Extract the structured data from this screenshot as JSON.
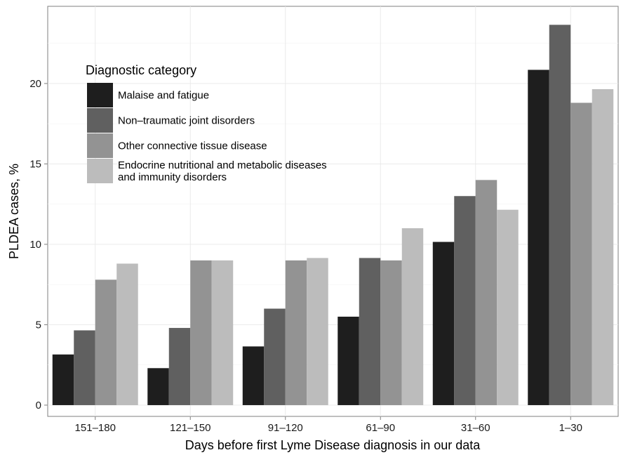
{
  "chart_data": {
    "type": "bar",
    "categories": [
      "151–180",
      "121–150",
      "91–120",
      "61–90",
      "31–60",
      "1–30"
    ],
    "series": [
      {
        "name": "Malaise and fatigue",
        "color": "#1e1e1e",
        "values": [
          3.15,
          2.3,
          3.65,
          5.5,
          10.15,
          20.85
        ]
      },
      {
        "name": "Non–traumatic joint disorders",
        "color": "#606060",
        "values": [
          4.65,
          4.8,
          6.0,
          9.15,
          13.0,
          23.65
        ]
      },
      {
        "name": "Other connective tissue disease",
        "color": "#939393",
        "values": [
          7.8,
          9.0,
          9.0,
          9.0,
          14.0,
          18.8
        ]
      },
      {
        "name": "Endocrine nutritional and metabolic diseases and immunity disorders",
        "name_lines": [
          "Endocrine nutritional and metabolic diseases",
          "and immunity disorders"
        ],
        "color": "#bcbcbc",
        "values": [
          8.8,
          9.0,
          9.15,
          11.0,
          12.15,
          19.65
        ]
      }
    ],
    "xlabel": "Days before first Lyme Disease diagnosis in our data",
    "ylabel": "PLDEA cases, %",
    "ylim": [
      -0.7,
      24.8
    ],
    "yticks": [
      0,
      5,
      10,
      15,
      20
    ],
    "legend": {
      "title": "Diagnostic category",
      "placement": "top-left"
    },
    "grid": true
  }
}
